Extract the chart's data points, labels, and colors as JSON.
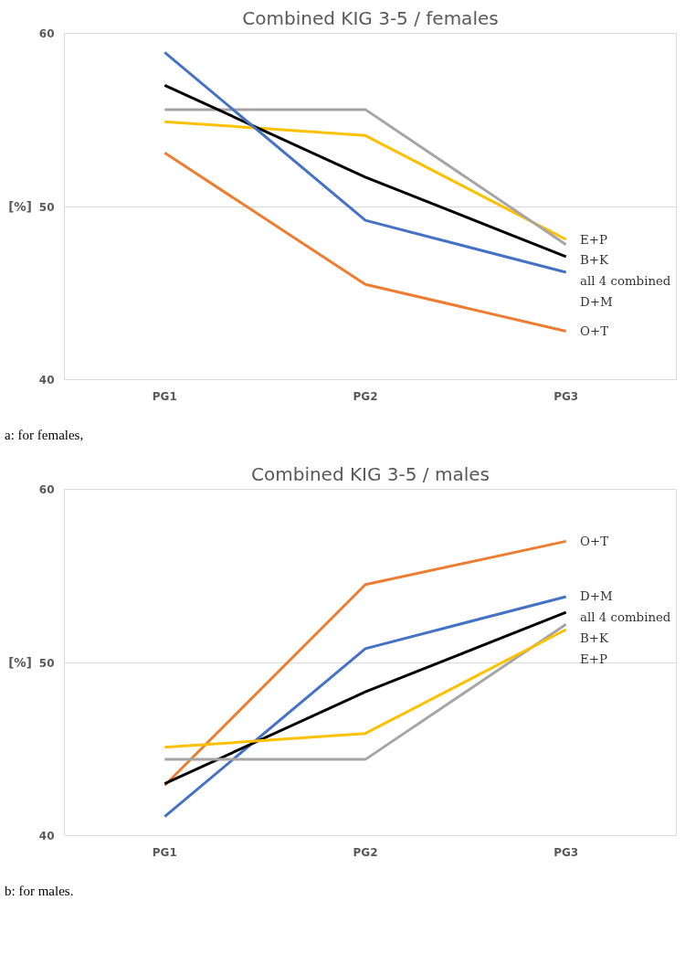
{
  "chart_data": [
    {
      "type": "line",
      "title": "Combined KIG 3-5 / females",
      "ylabel": "[%]",
      "categories": [
        "PG1",
        "PG2",
        "PG3"
      ],
      "ylim": [
        40,
        60
      ],
      "yticks": [
        40,
        50,
        60
      ],
      "grid": "y",
      "marker": "none",
      "line_style": "solid",
      "annotations": [
        "a: for females,"
      ],
      "series": [
        {
          "name": "E+P",
          "color": "#ffc000",
          "values": [
            54.9,
            54.1,
            48.1
          ]
        },
        {
          "name": "B+K",
          "color": "#a5a5a5",
          "values": [
            55.6,
            55.6,
            47.8
          ]
        },
        {
          "name": "all 4 combined",
          "color": "#000000",
          "values": [
            57.0,
            51.7,
            47.1
          ]
        },
        {
          "name": "D+M",
          "color": "#4472c4",
          "values": [
            58.9,
            49.2,
            46.2
          ]
        },
        {
          "name": "O+T",
          "color": "#ed7d31",
          "values": [
            53.1,
            45.5,
            42.8
          ]
        }
      ]
    },
    {
      "type": "line",
      "title": "Combined KIG 3-5 / males",
      "ylabel": "[%]",
      "categories": [
        "PG1",
        "PG2",
        "PG3"
      ],
      "ylim": [
        40,
        60
      ],
      "yticks": [
        40,
        50,
        60
      ],
      "grid": "y",
      "marker": "none",
      "line_style": "solid",
      "annotations": [
        "b: for males."
      ],
      "series": [
        {
          "name": "O+T",
          "color": "#ed7d31",
          "values": [
            42.9,
            54.5,
            57.0
          ]
        },
        {
          "name": "D+M",
          "color": "#4472c4",
          "values": [
            41.1,
            50.8,
            53.8
          ]
        },
        {
          "name": "all 4 combined",
          "color": "#000000",
          "values": [
            43.0,
            48.3,
            52.9
          ]
        },
        {
          "name": "B+K",
          "color": "#a5a5a5",
          "values": [
            44.4,
            44.4,
            52.2
          ]
        },
        {
          "name": "E+P",
          "color": "#ffc000",
          "values": [
            45.1,
            45.9,
            51.9
          ]
        }
      ]
    }
  ]
}
